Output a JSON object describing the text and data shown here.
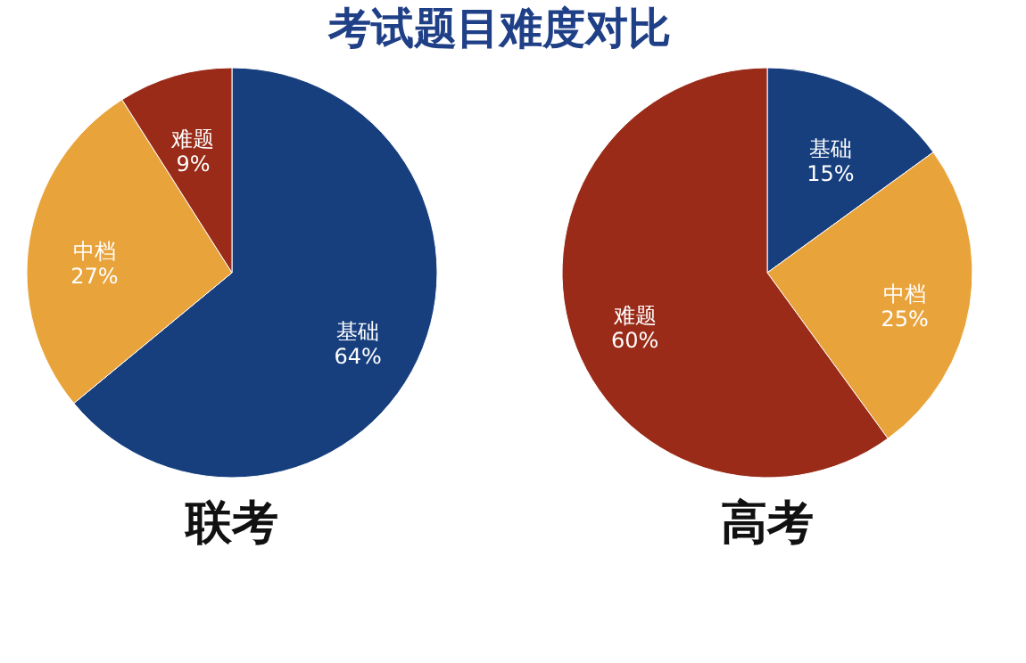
{
  "chart_data": [
    {
      "type": "pie",
      "title": "考试题目难度对比",
      "xlabel": "联考",
      "categories": [
        "基础",
        "中档",
        "难题"
      ],
      "values": [
        64,
        27,
        9
      ],
      "value_labels": [
        "64%",
        "27%",
        "9%"
      ],
      "colors": [
        "#173f7e",
        "#e8a33b",
        "#9a2b18"
      ],
      "legend": false
    },
    {
      "type": "pie",
      "xlabel": "高考",
      "categories": [
        "基础",
        "中档",
        "难题"
      ],
      "values": [
        15,
        25,
        60
      ],
      "value_labels": [
        "15%",
        "25%",
        "60%"
      ],
      "colors": [
        "#173f7e",
        "#e8a33b",
        "#9a2b18"
      ],
      "legend": false
    }
  ]
}
